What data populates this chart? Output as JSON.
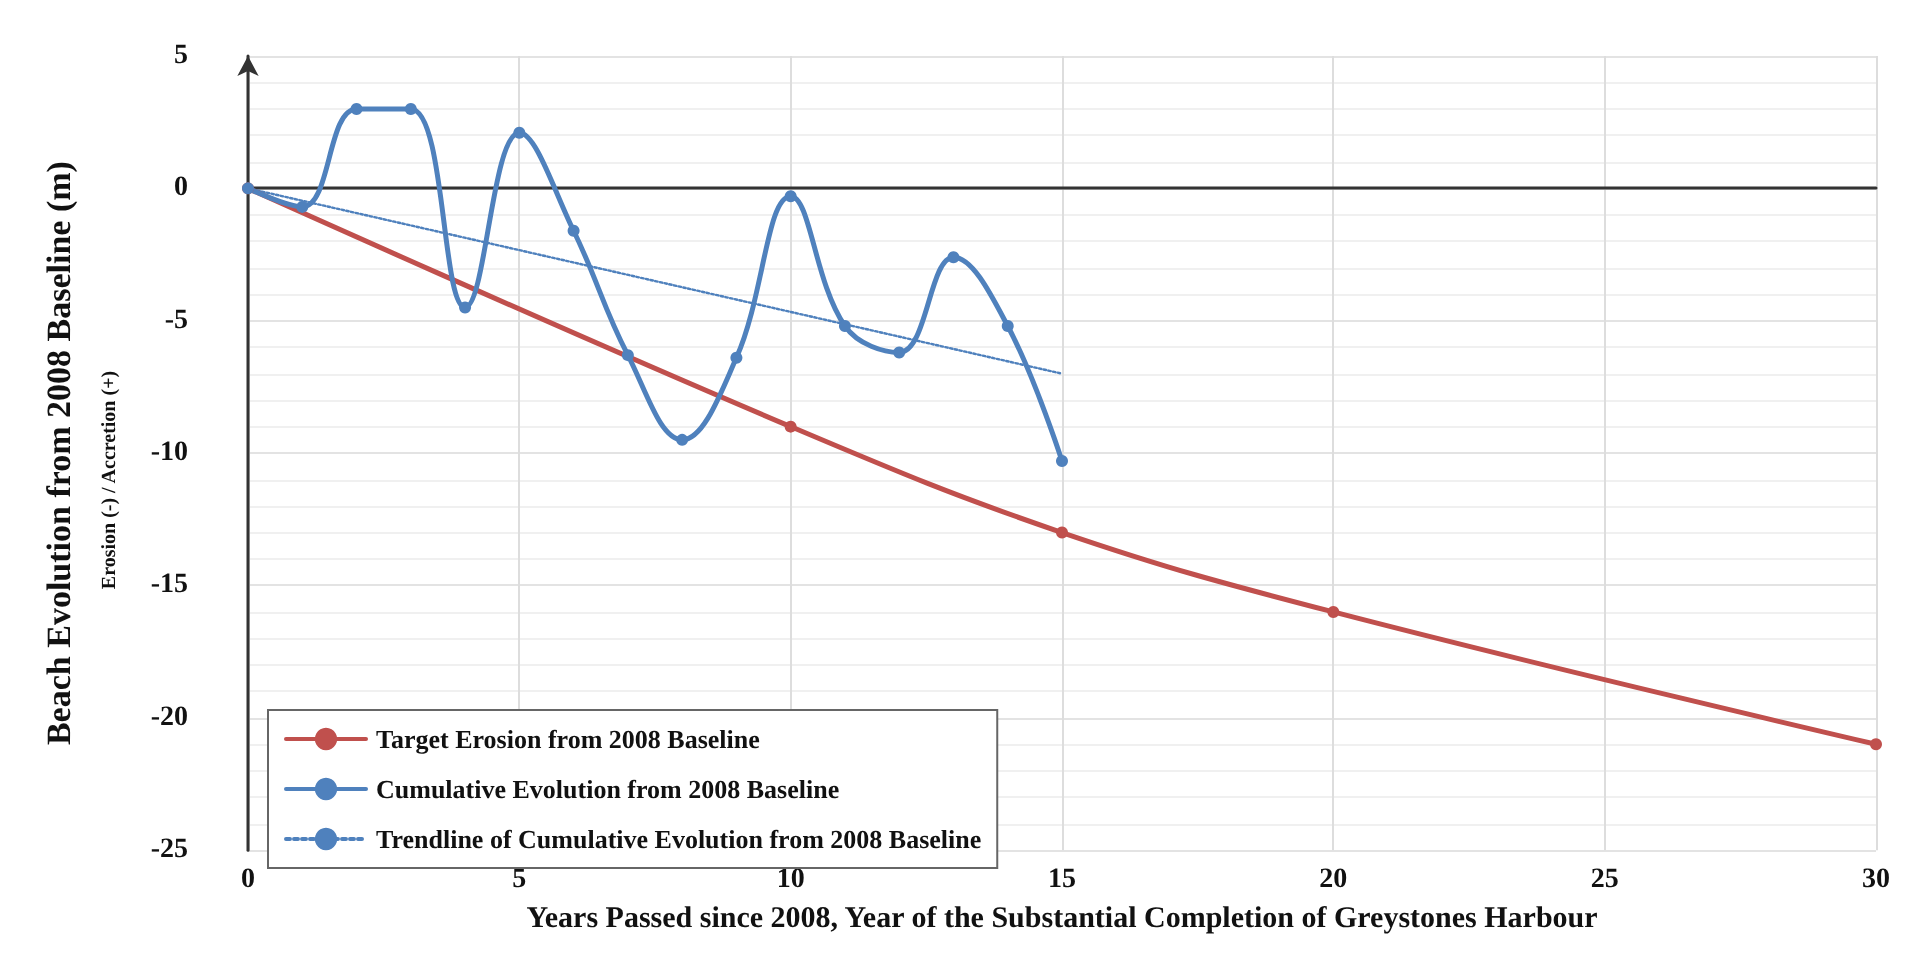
{
  "chart_data": {
    "type": "line",
    "xlabel": "Years Passed since 2008, Year of the Substantial Completion of Greystones Harbour",
    "ylabel": "Beach Evolution from 2008 Baseline (m)",
    "annotations": [
      "Erosion (-) / Accretion (+)"
    ],
    "xlim": [
      0,
      30
    ],
    "xticks": [
      0,
      5,
      10,
      15,
      20,
      25,
      30
    ],
    "ylim": [
      -25,
      5
    ],
    "yticks": [
      -25,
      -20,
      -15,
      -10,
      -5,
      0,
      5
    ],
    "grid": true,
    "legend": "bottom left",
    "marker": "circle",
    "line_style": "solid",
    "series": [
      {
        "name": "Target Erosion from 2008 Baseline",
        "color": "#c0504d",
        "x": [
          0,
          10,
          15,
          20,
          30
        ],
        "values": [
          0,
          -9,
          -13,
          -16,
          -21
        ]
      },
      {
        "name": "Cumulative Evolution from 2008 Baseline",
        "color": "#4f81bd",
        "x": [
          0,
          1,
          2,
          3,
          4,
          5,
          6,
          7,
          8,
          9,
          10,
          11,
          12,
          13,
          14,
          15
        ],
        "values": [
          0,
          -0.7,
          3.0,
          3.0,
          -4.5,
          2.1,
          -1.6,
          -6.3,
          -9.5,
          -6.4,
          -0.3,
          -5.2,
          -6.2,
          -2.6,
          -5.2,
          -10.3
        ]
      },
      {
        "name": "Trendline of Cumulative Evolution from 2008 Baseline",
        "color": "#4f81bd",
        "type": "line",
        "marker": "none",
        "line_style": "dotted",
        "x": [
          0,
          15
        ],
        "values": [
          0,
          -7
        ]
      }
    ]
  }
}
